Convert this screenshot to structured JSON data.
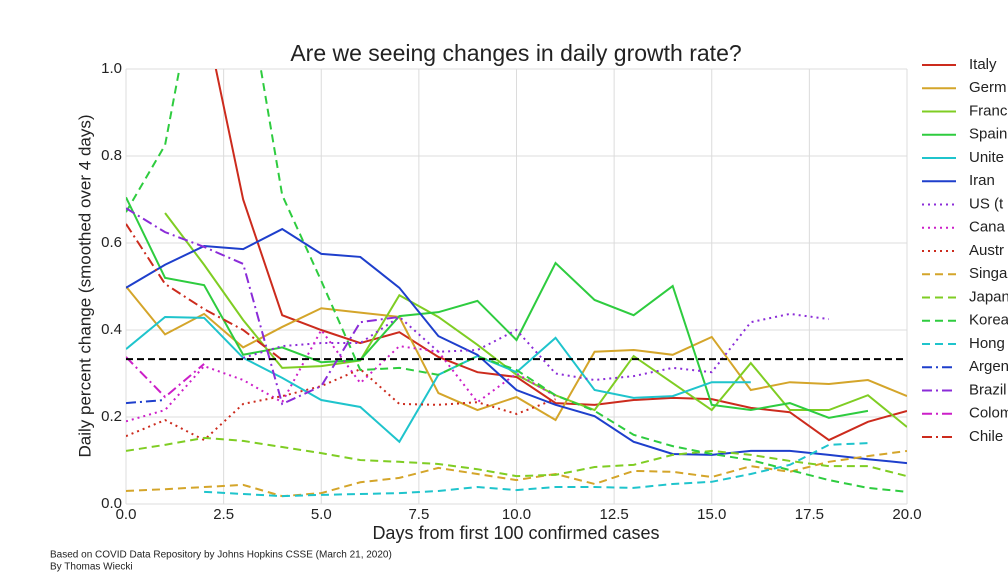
{
  "chart_data": {
    "type": "line",
    "title": "Are we seeing changes in daily growth rate?",
    "xlabel": "Days from first 100 confirmed cases",
    "ylabel": "Daily percent change (smoothed over 4 days)",
    "notes": [
      "Based on COVID Data Repository by Johns Hopkins CSSE (March 21, 2020)",
      "By Thomas Wiecki"
    ],
    "xlim": [
      0,
      20
    ],
    "ylim": [
      0,
      1
    ],
    "xticks": [
      {
        "value": 0,
        "label": "0.0"
      },
      2.5,
      {
        "value": 5,
        "label": "5.0"
      },
      7.5,
      {
        "value": 10,
        "label": "10.0"
      },
      12.5,
      {
        "value": 15,
        "label": "15.0"
      },
      17.5,
      {
        "value": 20,
        "label": "20.0"
      }
    ],
    "yticks": [
      {
        "value": 0,
        "label": "0.0"
      },
      0.2,
      0.4,
      0.6,
      0.8,
      {
        "value": 1,
        "label": "1.0"
      }
    ],
    "grid": true,
    "hline": 0.333,
    "legend": "right",
    "x": [
      0,
      1,
      2,
      3,
      4,
      5,
      6,
      7,
      8,
      9,
      10,
      11,
      12,
      13,
      14,
      15,
      16,
      17,
      18,
      19,
      20
    ],
    "series": [
      {
        "name": "Italy",
        "color": "#cc2b1d",
        "style": "solid",
        "values": [
          null,
          null,
          1.13,
          0.7,
          0.434,
          0.4,
          0.37,
          0.395,
          0.338,
          0.303,
          0.292,
          0.232,
          0.228,
          0.239,
          0.244,
          0.241,
          0.221,
          0.211,
          0.147,
          0.189,
          0.214
        ]
      },
      {
        "name": "Germ",
        "color": "#d4a52a",
        "style": "solid",
        "values": [
          0.5,
          0.39,
          0.437,
          0.36,
          0.407,
          0.45,
          0.44,
          0.43,
          0.255,
          0.216,
          0.246,
          0.193,
          0.35,
          0.354,
          0.343,
          0.384,
          0.262,
          0.28,
          0.276,
          0.285,
          0.248
        ]
      },
      {
        "name": "Franc",
        "color": "#7fcd23",
        "style": "solid",
        "values": [
          null,
          0.669,
          0.55,
          0.423,
          0.313,
          0.317,
          0.33,
          0.48,
          0.43,
          0.366,
          0.297,
          0.25,
          0.216,
          0.34,
          0.278,
          0.216,
          0.324,
          0.216,
          0.216,
          0.25,
          0.177
        ]
      },
      {
        "name": "Spain",
        "color": "#2ecc3f",
        "style": "solid",
        "values": [
          0.705,
          0.52,
          0.503,
          0.343,
          0.36,
          0.326,
          0.331,
          0.432,
          0.441,
          0.467,
          0.377,
          0.554,
          0.469,
          0.434,
          0.501,
          0.228,
          0.216,
          0.232,
          0.198,
          0.214,
          null
        ]
      },
      {
        "name": "Unite",
        "color": "#1fc4cc",
        "style": "solid",
        "values": [
          0.356,
          0.43,
          0.428,
          0.336,
          0.29,
          0.239,
          0.223,
          0.143,
          0.297,
          0.34,
          0.303,
          0.382,
          0.262,
          0.244,
          0.248,
          0.28,
          0.28,
          null,
          null,
          null,
          null
        ]
      },
      {
        "name": "Iran",
        "color": "#1e3fcc",
        "style": "solid",
        "values": [
          0.497,
          0.55,
          0.593,
          0.586,
          0.632,
          0.575,
          0.568,
          0.497,
          0.386,
          0.343,
          0.262,
          0.228,
          0.202,
          0.143,
          0.115,
          0.113,
          0.122,
          0.122,
          0.113,
          0.103,
          0.094
        ]
      },
      {
        "name": "US (t",
        "color": "#8b2cd8",
        "style": "dotted",
        "values": [
          null,
          null,
          null,
          0.336,
          0.363,
          0.37,
          0.37,
          0.43,
          0.35,
          0.354,
          0.4,
          0.3,
          0.285,
          0.294,
          0.313,
          0.303,
          0.418,
          0.437,
          0.425,
          null,
          null
        ]
      },
      {
        "name": "Cana",
        "color": "#cc1fc8",
        "style": "dotted",
        "values": [
          0.19,
          0.216,
          0.317,
          0.285,
          0.234,
          0.4,
          0.278,
          0.363,
          0.35,
          0.234,
          0.3,
          0.248,
          null,
          null,
          null,
          null,
          null,
          null,
          null,
          null,
          null
        ]
      },
      {
        "name": "Austr",
        "color": "#cc2b1d",
        "style": "dotted",
        "values": [
          0.156,
          0.193,
          0.147,
          0.23,
          0.248,
          0.271,
          0.31,
          0.23,
          0.228,
          0.234,
          0.207,
          0.241,
          null,
          null,
          null,
          null,
          null,
          null,
          null,
          null,
          null
        ]
      },
      {
        "name": "Singa",
        "color": "#d4a52a",
        "style": "dashed",
        "values": [
          0.03,
          0.034,
          0.039,
          0.044,
          0.018,
          0.025,
          0.05,
          0.06,
          0.083,
          0.069,
          0.055,
          0.069,
          0.046,
          0.076,
          0.074,
          0.062,
          0.087,
          0.074,
          0.097,
          0.11,
          0.122
        ]
      },
      {
        "name": "Japan",
        "color": "#7fcd23",
        "style": "dashed",
        "values": [
          0.122,
          0.136,
          0.152,
          0.145,
          0.131,
          0.117,
          0.101,
          0.097,
          0.092,
          0.08,
          0.064,
          0.067,
          0.085,
          0.09,
          0.113,
          0.122,
          0.113,
          0.099,
          0.087,
          0.087,
          0.064
        ]
      },
      {
        "name": "Korea",
        "color": "#2ecc3f",
        "style": "dashed",
        "values": [
          0.671,
          0.825,
          1.3,
          1.24,
          0.71,
          0.513,
          0.308,
          0.313,
          0.297,
          0.34,
          0.308,
          0.25,
          0.214,
          0.159,
          0.133,
          0.115,
          0.101,
          0.078,
          0.055,
          0.037,
          0.028
        ]
      },
      {
        "name": "Hong",
        "color": "#1fc4cc",
        "style": "dashed",
        "values": [
          null,
          null,
          0.028,
          0.023,
          0.018,
          0.021,
          0.023,
          0.025,
          0.03,
          0.039,
          0.032,
          0.039,
          0.039,
          0.037,
          0.046,
          0.051,
          0.069,
          0.09,
          0.136,
          0.14,
          null
        ]
      },
      {
        "name": "Argen",
        "color": "#1e3fcc",
        "style": "dashdot",
        "values": [
          0.232,
          0.239,
          null,
          null,
          null,
          null,
          null,
          null,
          null,
          null,
          null,
          null,
          null,
          null,
          null,
          null,
          null,
          null,
          null,
          null,
          null
        ]
      },
      {
        "name": "Brazil",
        "color": "#8b2cd8",
        "style": "dashdot",
        "values": [
          0.68,
          0.625,
          0.591,
          0.552,
          0.23,
          0.271,
          0.418,
          0.43,
          null,
          null,
          null,
          null,
          null,
          null,
          null,
          null,
          null,
          null,
          null,
          null,
          null
        ]
      },
      {
        "name": "Colom",
        "color": "#cc1fc8",
        "style": "dashdot",
        "values": [
          0.338,
          0.246,
          0.322,
          null,
          null,
          null,
          null,
          null,
          null,
          null,
          null,
          null,
          null,
          null,
          null,
          null,
          null,
          null,
          null,
          null,
          null
        ]
      },
      {
        "name": "Chile",
        "color": "#cc2b1d",
        "style": "dashdot",
        "values": [
          0.644,
          0.506,
          0.448,
          0.4,
          0.331,
          null,
          null,
          null,
          null,
          null,
          null,
          null,
          null,
          null,
          null,
          null,
          null,
          null,
          null,
          null,
          null
        ]
      }
    ]
  }
}
